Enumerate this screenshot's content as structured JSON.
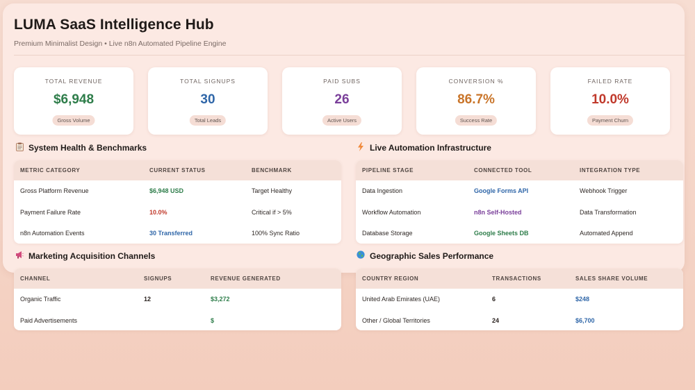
{
  "header": {
    "title": "LUMA SaaS Intelligence Hub",
    "subtitle": "Premium Minimalist Design • Live n8n Automated Pipeline Engine"
  },
  "kpis": [
    {
      "label": "TOTAL REVENUE",
      "value": "$6,948",
      "badge": "Gross Volume",
      "color": "#2e7d4a"
    },
    {
      "label": "TOTAL SIGNUPS",
      "value": "30",
      "badge": "Total Leads",
      "color": "#2f66a8"
    },
    {
      "label": "PAID SUBS",
      "value": "26",
      "badge": "Active Users",
      "color": "#7a3f9a"
    },
    {
      "label": "CONVERSION %",
      "value": "86.7%",
      "badge": "Success Rate",
      "color": "#c9752a"
    },
    {
      "label": "FAILED RATE",
      "value": "10.0%",
      "badge": "Payment Churn",
      "color": "#c0392b"
    }
  ],
  "system_health": {
    "heading": "System Health & Benchmarks",
    "icon": "clipboard-icon",
    "columns": [
      "METRIC CATEGORY",
      "CURRENT STATUS",
      "BENCHMARK"
    ],
    "rows": [
      [
        "Gross Platform Revenue",
        "$6,948 USD",
        "Target Healthy"
      ],
      [
        "Payment Failure Rate",
        "10.0%",
        "Critical if > 5%"
      ],
      [
        "n8n Automation Events",
        "30 Transferred",
        "100% Sync Ratio"
      ]
    ]
  },
  "automation": {
    "heading": "Live Automation Infrastructure",
    "icon": "lightning-icon",
    "columns": [
      "PIPELINE STAGE",
      "CONNECTED TOOL",
      "INTEGRATION TYPE"
    ],
    "rows": [
      [
        "Data Ingestion",
        "Google Forms API",
        "Webhook Trigger"
      ],
      [
        "Workflow Automation",
        "n8n Self-Hosted",
        "Data Transformation"
      ],
      [
        "Database Storage",
        "Google Sheets DB",
        "Automated Append"
      ]
    ]
  },
  "marketing": {
    "heading": "Marketing Acquisition Channels",
    "icon": "megaphone-icon",
    "columns": [
      "CHANNEL",
      "SIGNUPS",
      "REVENUE GENERATED"
    ],
    "rows": [
      [
        "Organic Traffic",
        "12",
        "$3,272"
      ],
      [
        "Paid Advertisements",
        "",
        "$"
      ]
    ]
  },
  "geographic": {
    "heading": "Geographic Sales Performance",
    "icon": "globe-icon",
    "columns": [
      "COUNTRY REGION",
      "TRANSACTIONS",
      "SALES SHARE VOLUME"
    ],
    "rows": [
      [
        "United Arab Emirates (UAE)",
        "6",
        "$248"
      ],
      [
        "Other / Global Territories",
        "24",
        "$6,700"
      ]
    ]
  }
}
